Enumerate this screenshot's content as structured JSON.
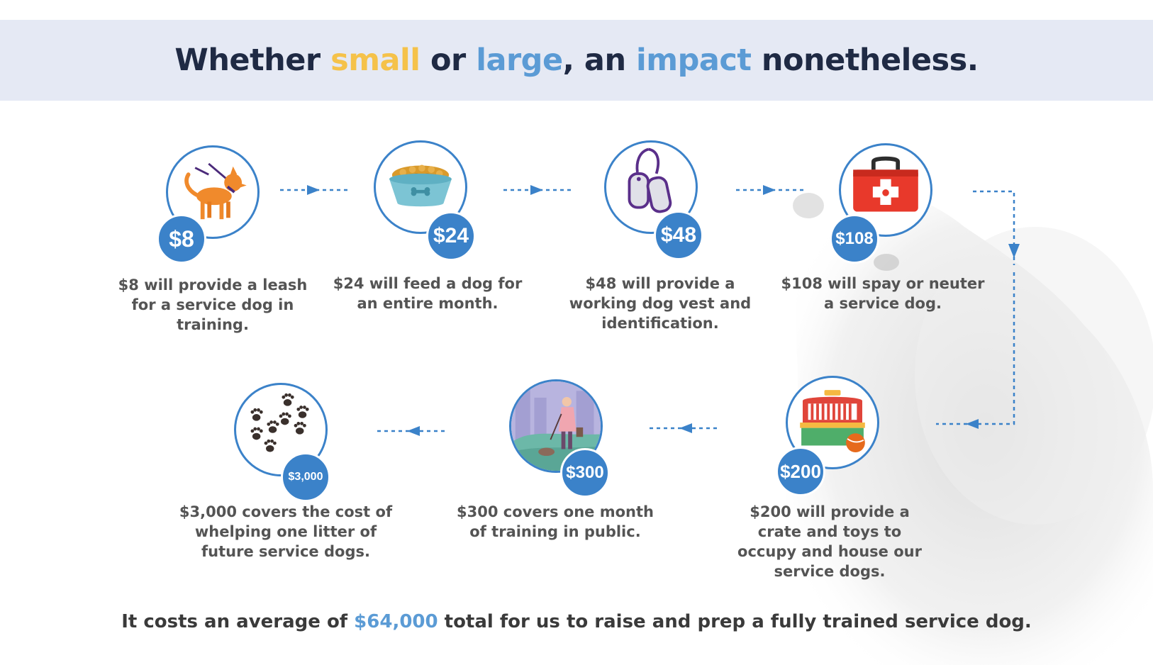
{
  "headline": {
    "part1": "Whether ",
    "small": "small",
    "part2": " or ",
    "large": "large",
    "part3": ", an ",
    "impact": "impact",
    "part4": " nonetheless."
  },
  "colors": {
    "accent_blue": "#3b82c9",
    "highlight_yellow": "#f5c24a",
    "highlight_blue": "#5b9bd5",
    "banner_bg": "#e5e9f4"
  },
  "steps": [
    {
      "amount": "$8",
      "icon": "dog-leash-icon",
      "text": "$8 will provide a leash for a service dog in training."
    },
    {
      "amount": "$24",
      "icon": "food-bowl-icon",
      "text": "$24 will feed a dog for an entire month."
    },
    {
      "amount": "$48",
      "icon": "dog-tags-icon",
      "text": "$48 will provide a working dog vest and identification."
    },
    {
      "amount": "$108",
      "icon": "first-aid-kit-icon",
      "text": "$108 will spay or neuter a service dog."
    },
    {
      "amount": "$200",
      "icon": "dog-crate-icon",
      "text": "$200 will provide a crate and toys to occupy and house our service dogs."
    },
    {
      "amount": "$300",
      "icon": "training-walk-icon",
      "text": "$300 covers one month of training in public."
    },
    {
      "amount": "$3,000",
      "icon": "paw-prints-icon",
      "text": "$3,000 covers the cost of whelping one litter of future service dogs."
    }
  ],
  "footer": {
    "before": "It costs an average of ",
    "amount": "$64,000",
    "after": " total for us to raise and prep a fully trained service dog."
  }
}
